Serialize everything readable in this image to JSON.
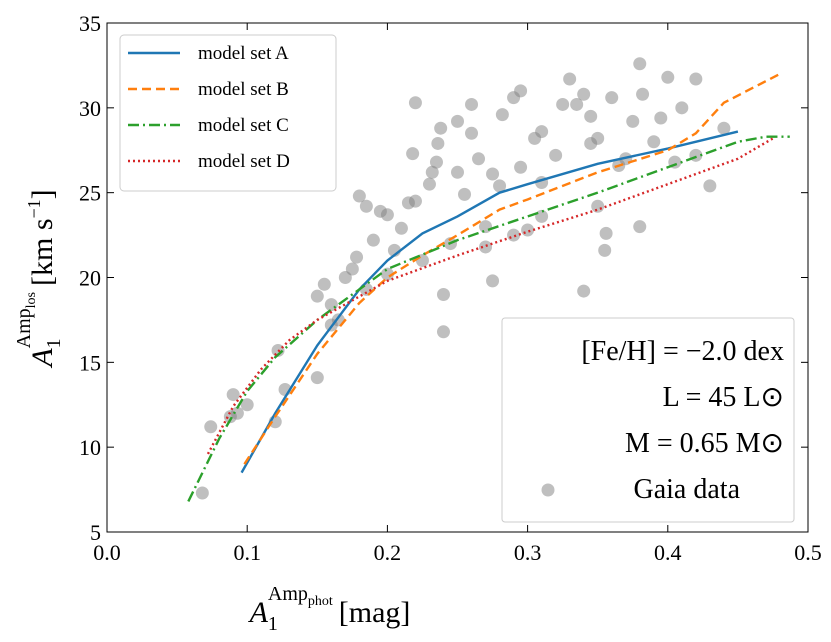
{
  "chart_data": {
    "type": "line",
    "xlabel": {
      "base": "A",
      "sub": "1",
      "sup": "Amp",
      "supsub": "phot",
      "unit": "[mag]"
    },
    "ylabel": {
      "base": "A",
      "sub": "1",
      "sup": "Amp",
      "supsub": "los",
      "unit": "[km s",
      "unitsup": "−1",
      "close": "]"
    },
    "xlim": [
      0,
      0.5
    ],
    "ylim": [
      5,
      35
    ],
    "xticks": [
      {
        "value": 0,
        "label": "0.0"
      },
      0.1,
      0.2,
      0.3,
      0.4,
      0.5
    ],
    "yticks": [
      5,
      10,
      15,
      20,
      25,
      30,
      35
    ],
    "legend": "upper left",
    "annotations": [
      "[Fe/H] = −2.0 dex",
      "L = 45 L⊙",
      "M = 0.65 M⊙"
    ],
    "series": [
      {
        "name": "Gaia data",
        "type": "scatter",
        "color": "#808080",
        "x": [
          0.068,
          0.074,
          0.09,
          0.088,
          0.093,
          0.1,
          0.12,
          0.122,
          0.127,
          0.15,
          0.15,
          0.155,
          0.16,
          0.165,
          0.17,
          0.175,
          0.178,
          0.18,
          0.185,
          0.185,
          0.19,
          0.195,
          0.2,
          0.205,
          0.21,
          0.215,
          0.22,
          0.218,
          0.22,
          0.225,
          0.23,
          0.232,
          0.235,
          0.236,
          0.238,
          0.24,
          0.24,
          0.245,
          0.25,
          0.255,
          0.26,
          0.26,
          0.265,
          0.27,
          0.275,
          0.275,
          0.28,
          0.282,
          0.29,
          0.29,
          0.295,
          0.295,
          0.3,
          0.305,
          0.31,
          0.31,
          0.32,
          0.325,
          0.33,
          0.335,
          0.34,
          0.34,
          0.345,
          0.35,
          0.35,
          0.355,
          0.356,
          0.36,
          0.37,
          0.375,
          0.38,
          0.38,
          0.382,
          0.39,
          0.395,
          0.4,
          0.405,
          0.41,
          0.42,
          0.42,
          0.43,
          0.44,
          0.365,
          0.27,
          0.2,
          0.16,
          0.25,
          0.31,
          0.345
        ],
        "values": [
          7.3,
          11.2,
          13.1,
          11.8,
          12,
          12.5,
          11.5,
          15.7,
          13.4,
          14.1,
          18.9,
          19.6,
          18.4,
          17.5,
          20,
          20.5,
          21.2,
          24.8,
          24.2,
          19.3,
          22.2,
          23.9,
          23.7,
          21.6,
          22.9,
          24.4,
          30.3,
          27.3,
          24.5,
          21,
          25.5,
          26.2,
          26.8,
          27.9,
          28.8,
          16.8,
          19,
          22,
          26.2,
          24.9,
          28.5,
          30.2,
          27,
          23,
          19.8,
          26.1,
          25.4,
          29.6,
          22.5,
          30.6,
          31,
          26.5,
          22.8,
          28.2,
          28.6,
          23.6,
          27.2,
          30.2,
          31.7,
          30.2,
          30.8,
          19.2,
          29.5,
          28.2,
          24.2,
          21.6,
          22.6,
          30.6,
          27,
          29.2,
          23,
          32.6,
          30.8,
          28,
          29.4,
          31.8,
          26.8,
          30,
          31.7,
          27.2,
          25.4,
          28.8,
          26.6,
          21.8,
          20.2,
          17.2,
          29.2,
          25.6,
          27.9
        ]
      },
      {
        "name": "model set A",
        "color": "#1f77b4",
        "dash": "solid",
        "x": [
          0.096,
          0.12,
          0.15,
          0.18,
          0.2,
          0.225,
          0.25,
          0.28,
          0.3,
          0.35,
          0.4,
          0.45
        ],
        "values": [
          8.5,
          12,
          16,
          19.3,
          21,
          22.6,
          23.6,
          25,
          25.5,
          26.7,
          27.6,
          28.6
        ]
      },
      {
        "name": "model set B",
        "color": "#ff7f0e",
        "dash": "dashed",
        "x": [
          0.098,
          0.12,
          0.15,
          0.18,
          0.2,
          0.225,
          0.25,
          0.28,
          0.3,
          0.35,
          0.4,
          0.42,
          0.44,
          0.48
        ],
        "values": [
          9,
          11.8,
          15.5,
          18.5,
          20,
          21.3,
          22.5,
          24,
          24.6,
          26.2,
          27.5,
          28.5,
          30.3,
          32
        ]
      },
      {
        "name": "model set C",
        "color": "#2ca02c",
        "dash": "dashdot",
        "x": [
          0.058,
          0.08,
          0.1,
          0.12,
          0.15,
          0.2,
          0.25,
          0.3,
          0.35,
          0.4,
          0.45,
          0.47,
          0.487
        ],
        "values": [
          6.8,
          10.5,
          13.3,
          15.3,
          17.5,
          20.5,
          22.2,
          23.6,
          25,
          26.5,
          28,
          28.3,
          28.3
        ]
      },
      {
        "name": "model set D",
        "color": "#d62728",
        "dash": "dotted",
        "x": [
          0.072,
          0.09,
          0.11,
          0.13,
          0.15,
          0.2,
          0.25,
          0.3,
          0.35,
          0.4,
          0.45,
          0.475
        ],
        "values": [
          9.6,
          12.4,
          14.6,
          16.3,
          17.5,
          19.8,
          21.3,
          22.7,
          24,
          25.5,
          27,
          28.2
        ]
      }
    ]
  }
}
